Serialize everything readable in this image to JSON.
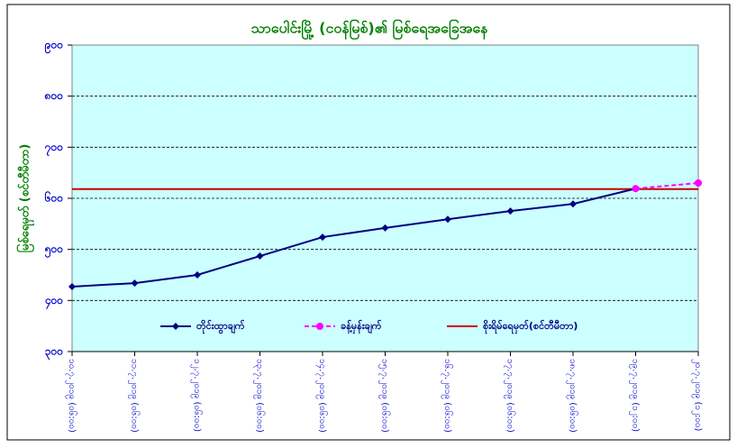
{
  "chart_data": {
    "type": "line",
    "title": "သာပေါင်းမြို့ (ငဝန်မြစ်)၏ မြစ်ရေအခြေအနေ",
    "y_label": "မြစ်ရေမှတ် (စင်တီမီတာ)",
    "categories": [
      "၁၀.၇.၂၀၁၉ (၀၆:၀၀)",
      "၁၁.၇.၂၀၁၉ (၀၆:၀၀)",
      "၁၂.၇.၂၀၁၉ (၀၆:၀၀)",
      "၁၃.၇.၂၀၁၉ (၀၆:၀၀)",
      "၁၄.၇.၂၀၁၉ (၀၆:၀၀)",
      "၁၅.၇.၂၀၁၉ (၀၆:၀၀)",
      "၁၆.၇.၂၀၁၉ (၀၆:၀၀)",
      "၁၇.၇.၂၀၁၉ (၀၆:၀၀)",
      "၁၈.၇.၂၀၁၉ (၀၆:၀၀)",
      "၁၉.၇.၂၀၁၉ (၁၂:၀၀)",
      "၂၀.၇.၂၀၁၉ (၁၂:၀၀)"
    ],
    "series": [
      {
        "name": "တိုင်းထွာချက်",
        "color": "#000080",
        "marker": "diamond",
        "dashed": false,
        "values": [
          427,
          434,
          450,
          487,
          524,
          542,
          559,
          575,
          589,
          619,
          null
        ]
      },
      {
        "name": "ခန့်မှန်းချက်",
        "color": "#ff00ff",
        "marker": "circle",
        "dashed": true,
        "values": [
          null,
          null,
          null,
          null,
          null,
          null,
          null,
          null,
          null,
          619,
          630
        ]
      }
    ],
    "reference_line": {
      "name": "စိုးရိမ်ရေမှတ်(စင်တီမီတာ)",
      "color": "#cc0000",
      "value": 618
    },
    "ylim": [
      300,
      900
    ],
    "yticks": [
      {
        "value": 300,
        "label": "၃၀၀"
      },
      {
        "value": 400,
        "label": "၄၀၀"
      },
      {
        "value": 500,
        "label": "၅၀၀"
      },
      {
        "value": 600,
        "label": "၆၀၀"
      },
      {
        "value": 700,
        "label": "၇၀၀"
      },
      {
        "value": 800,
        "label": "၈၀၀"
      },
      {
        "value": 900,
        "label": "၉၀၀"
      }
    ],
    "grid": true,
    "plot_background": "#ccffff"
  }
}
